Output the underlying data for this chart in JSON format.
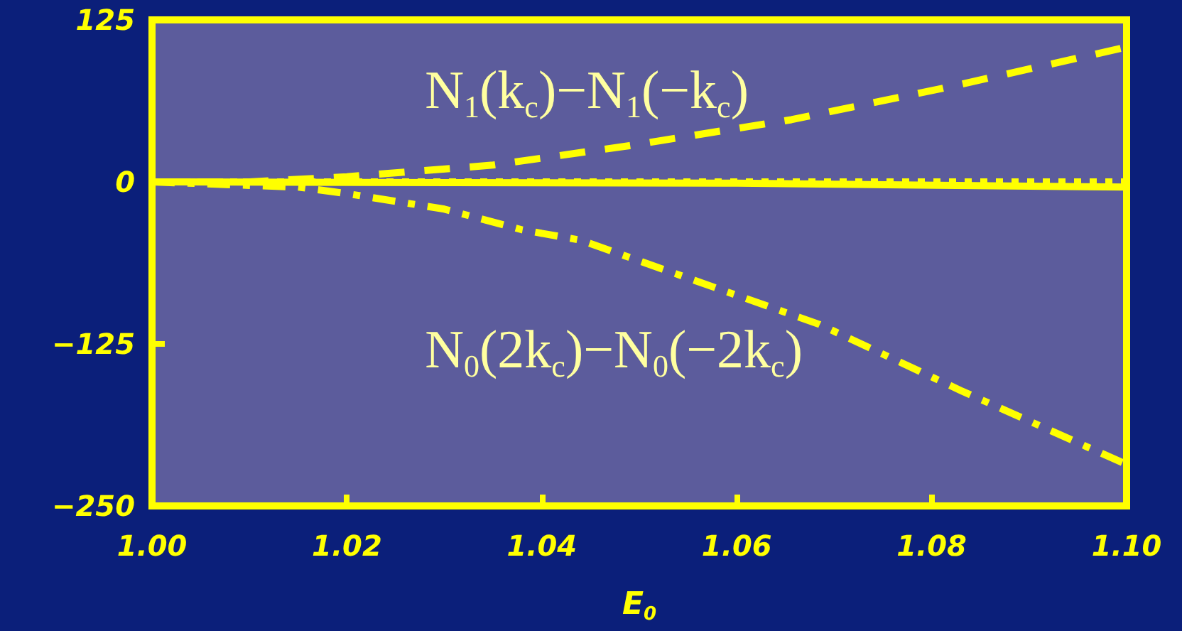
{
  "chart_data": {
    "type": "line",
    "xlabel": "E$_{0}$",
    "xlim": [
      1.0,
      1.1
    ],
    "xticks": [
      {
        "value": 1.0,
        "label": "1.00"
      },
      {
        "value": 1.02,
        "label": "1.02"
      },
      {
        "value": 1.04,
        "label": "1.04"
      },
      {
        "value": 1.06,
        "label": "1.06"
      },
      {
        "value": 1.08,
        "label": "1.08"
      },
      {
        "value": 1.1,
        "label": "1.10"
      }
    ],
    "ylim": [
      -250,
      125
    ],
    "yticks": [
      -250,
      -125,
      0,
      125
    ],
    "grid": false,
    "marker": "none",
    "series": [
      {
        "color": "#ffff00",
        "line_style": "dashed",
        "x": [
          1.0,
          1.01,
          1.02,
          1.035,
          1.049,
          1.0656,
          1.081,
          1.1
        ],
        "values": [
          0,
          0,
          4,
          13,
          28,
          48,
          72,
          104
        ]
      },
      {
        "color": "#ffff00",
        "line_style": "dashdot",
        "x": [
          1.0,
          1.015,
          1.02,
          1.03,
          1.038,
          1.044,
          1.0685,
          1.083,
          1.1
        ],
        "values": [
          0,
          -4,
          -9,
          -21,
          -37,
          -45,
          -110,
          -161,
          -218
        ]
      },
      {
        "color": "#ffff00",
        "line_style": "solid",
        "x": [
          1.0,
          1.06,
          1.1
        ],
        "values": [
          0,
          -1,
          -4
        ]
      },
      {
        "color": "#ffff00",
        "line_style": "dotted",
        "x": [
          1.0,
          1.1
        ],
        "values": [
          0,
          0
        ]
      }
    ],
    "annotations": [
      "N$_{1}$(k$_{c}$)−N$_{1}$(−k$_{c}$)",
      "N$_{0}$(2k$_{c}$)−N$_{0}$(−2k$_{c}$)"
    ]
  }
}
